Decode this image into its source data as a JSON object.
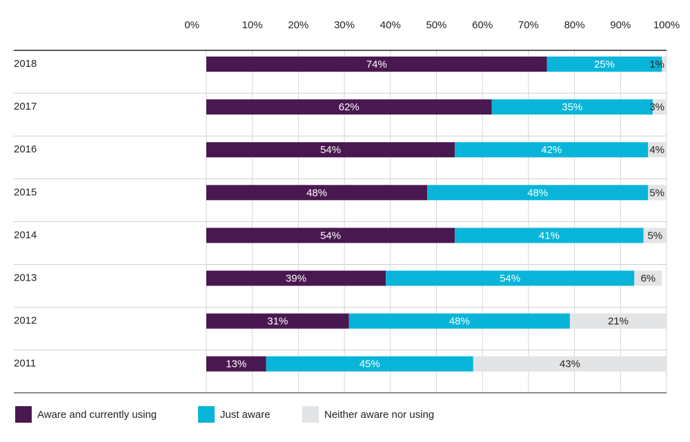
{
  "chart_data": {
    "type": "bar",
    "orientation": "horizontal",
    "stacked": true,
    "categories": [
      "2018",
      "2017",
      "2016",
      "2015",
      "2014",
      "2013",
      "2012",
      "2011"
    ],
    "series": [
      {
        "name": "Aware and currently using",
        "color": "#4a1850",
        "label_color": "#ffffff",
        "values": [
          74,
          62,
          54,
          48,
          54,
          39,
          31,
          13
        ]
      },
      {
        "name": "Just aware",
        "color": "#08b5d8",
        "label_color": "#ffffff",
        "values": [
          25,
          35,
          42,
          48,
          41,
          54,
          48,
          45
        ]
      },
      {
        "name": "Neither aware nor using",
        "color": "#e3e4e5",
        "label_color": "#222222",
        "values": [
          1,
          3,
          4,
          5,
          5,
          6,
          21,
          43
        ]
      }
    ],
    "xticks": [
      "0%",
      "10%",
      "20%",
      "30%",
      "40%",
      "50%",
      "60%",
      "70%",
      "80%",
      "90%",
      "100%"
    ],
    "xlim": [
      0,
      100
    ],
    "value_suffix": "%",
    "grid": true,
    "legend_position": "bottom"
  }
}
